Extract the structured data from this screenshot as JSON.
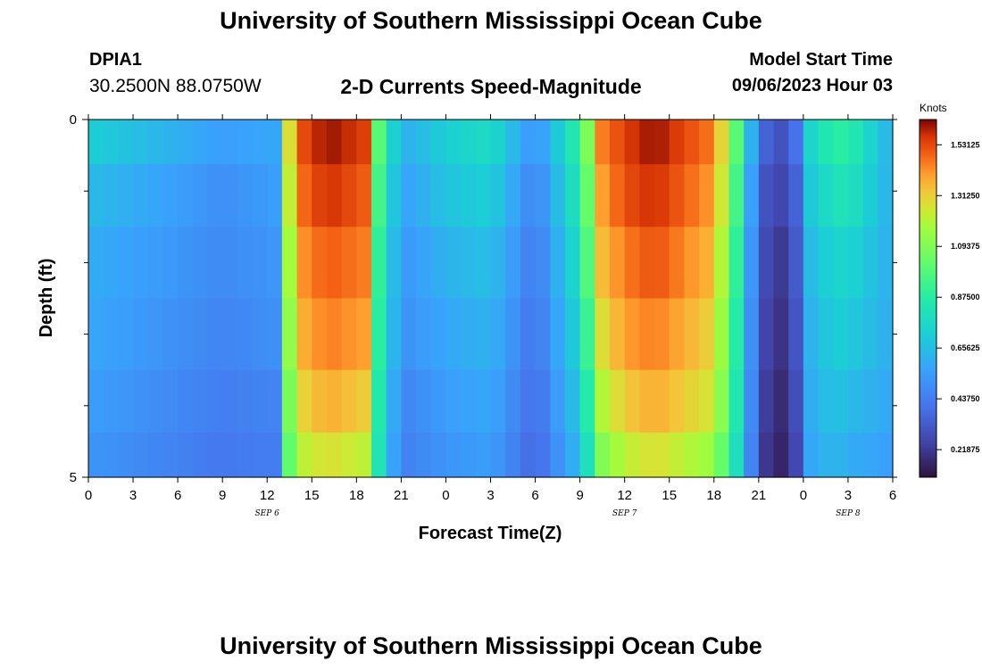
{
  "header": {
    "title": "University of Southern Mississippi Ocean Cube",
    "station": "DPIA1",
    "coords": "30.2500N  88.0750W",
    "plot_title": "2-D Currents Speed-Magnitude",
    "model_start_label": "Model Start Time",
    "model_start_value": "09/06/2023 Hour 03"
  },
  "footer": {
    "title": "University of Southern Mississippi Ocean Cube"
  },
  "chart_data": {
    "type": "heatmap",
    "title": "2-D Currents Speed-Magnitude",
    "xlabel": "Forecast Time(Z)",
    "ylabel": "Depth (ft)",
    "x_tick_labels": [
      "0",
      "3",
      "6",
      "9",
      "12",
      "15",
      "18",
      "21",
      "0",
      "3",
      "6",
      "9",
      "12",
      "15",
      "18",
      "21",
      "0",
      "3",
      "6"
    ],
    "date_labels": [
      {
        "label": "SEP 6",
        "at_tick": 4
      },
      {
        "label": "SEP 7",
        "at_tick": 12
      },
      {
        "label": "SEP 8",
        "at_tick": 17
      }
    ],
    "y_tick_labels": [
      {
        "value": 0,
        "label": "0"
      },
      {
        "value": 5,
        "label": "5"
      }
    ],
    "ylim": [
      0,
      5
    ],
    "colorbar": {
      "label": "Knots",
      "min": 0.1,
      "max": 1.64,
      "ticks": [
        "1.53125",
        "1.31250",
        "1.09375",
        "0.87500",
        "0.65625",
        "0.43750",
        "0.21875"
      ]
    },
    "depth_levels": [
      0.25,
      1.0,
      2.0,
      3.0,
      4.0,
      4.75
    ],
    "hour_offsets": [
      0,
      9,
      12.5,
      13,
      14,
      16,
      18.5,
      19.5,
      21,
      24,
      27,
      30,
      33,
      34.5,
      36,
      38,
      42,
      44,
      45,
      46.5,
      48,
      48.5,
      50,
      51,
      54
    ],
    "speeds_by_depth": [
      [
        0.72,
        0.55,
        0.58,
        1.05,
        1.5,
        1.62,
        1.55,
        1.0,
        0.6,
        0.72,
        0.78,
        0.5,
        0.9,
        1.45,
        1.55,
        1.62,
        1.45,
        0.85,
        0.38,
        0.3,
        0.45,
        0.75,
        0.88,
        0.88,
        0.6
      ],
      [
        0.65,
        0.5,
        0.55,
        1.0,
        1.45,
        1.58,
        1.5,
        0.95,
        0.55,
        0.68,
        0.72,
        0.45,
        0.85,
        1.4,
        1.52,
        1.58,
        1.4,
        0.8,
        0.32,
        0.26,
        0.4,
        0.7,
        0.8,
        0.82,
        0.6
      ],
      [
        0.6,
        0.48,
        0.52,
        0.95,
        1.4,
        1.5,
        1.45,
        0.9,
        0.52,
        0.62,
        0.66,
        0.42,
        0.8,
        1.35,
        1.45,
        1.52,
        1.35,
        0.75,
        0.3,
        0.22,
        0.38,
        0.65,
        0.75,
        0.75,
        0.6
      ],
      [
        0.58,
        0.46,
        0.5,
        0.92,
        1.35,
        1.45,
        1.4,
        0.88,
        0.5,
        0.58,
        0.62,
        0.4,
        0.75,
        1.28,
        1.4,
        1.45,
        1.3,
        0.72,
        0.28,
        0.2,
        0.36,
        0.62,
        0.72,
        0.7,
        0.6
      ],
      [
        0.55,
        0.44,
        0.46,
        0.88,
        1.28,
        1.38,
        1.32,
        0.85,
        0.46,
        0.55,
        0.58,
        0.38,
        0.7,
        1.2,
        1.32,
        1.38,
        1.25,
        0.7,
        0.26,
        0.18,
        0.34,
        0.6,
        0.68,
        0.65,
        0.58
      ],
      [
        0.52,
        0.42,
        0.44,
        0.85,
        1.2,
        1.28,
        1.22,
        0.82,
        0.44,
        0.52,
        0.55,
        0.36,
        0.65,
        1.1,
        1.22,
        1.28,
        1.15,
        0.68,
        0.24,
        0.16,
        0.32,
        0.58,
        0.64,
        0.6,
        0.55
      ]
    ],
    "grid": false,
    "colormap": "turbo"
  }
}
